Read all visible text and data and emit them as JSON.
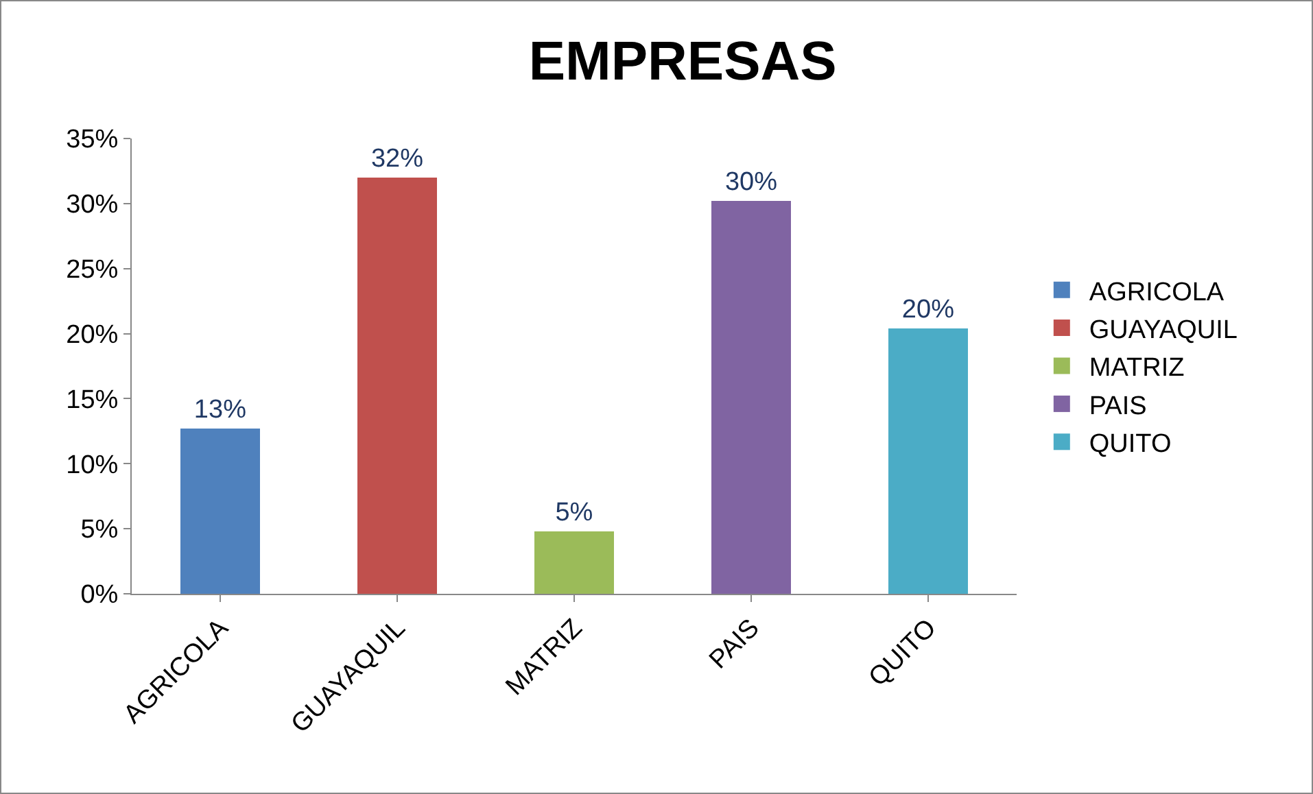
{
  "chart_data": {
    "type": "bar",
    "title": "EMPRESAS",
    "stacked": true,
    "categories": [
      "AGRICOLA",
      "GUAYAQUIL",
      "MATRIZ",
      "PAIS",
      "QUITO"
    ],
    "series": [
      {
        "name": "AGRICOLA",
        "color": "#4f81bd",
        "values": [
          12.7,
          null,
          null,
          null,
          null
        ],
        "value_labels": [
          "13%",
          null,
          null,
          null,
          null
        ]
      },
      {
        "name": "GUAYAQUIL",
        "color": "#c0504d",
        "values": [
          null,
          32.0,
          null,
          null,
          null
        ],
        "value_labels": [
          null,
          "32%",
          null,
          null,
          null
        ]
      },
      {
        "name": "MATRIZ",
        "color": "#9bbb59",
        "values": [
          null,
          null,
          4.8,
          null,
          null
        ],
        "value_labels": [
          null,
          null,
          "5%",
          null,
          null
        ]
      },
      {
        "name": "PAIS",
        "color": "#8064a2",
        "values": [
          null,
          null,
          null,
          30.2,
          null
        ],
        "value_labels": [
          null,
          null,
          null,
          "30%",
          null
        ]
      },
      {
        "name": "QUITO",
        "color": "#4bacc6",
        "values": [
          null,
          null,
          null,
          null,
          20.4
        ],
        "value_labels": [
          null,
          null,
          null,
          null,
          "20%"
        ]
      }
    ],
    "ylim": [
      0,
      35
    ],
    "yticks": [
      {
        "value": 0,
        "label": "0%"
      },
      {
        "value": 5,
        "label": "5%"
      },
      {
        "value": 10,
        "label": "10%"
      },
      {
        "value": 15,
        "label": "15%"
      },
      {
        "value": 20,
        "label": "20%"
      },
      {
        "value": 25,
        "label": "25%"
      },
      {
        "value": 30,
        "label": "30%"
      },
      {
        "value": 35,
        "label": "35%"
      }
    ],
    "grid": false,
    "legend": "right"
  }
}
